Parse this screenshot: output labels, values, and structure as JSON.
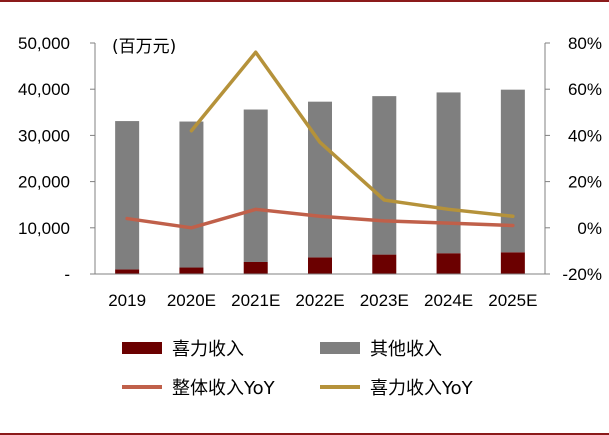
{
  "chart_data": {
    "type": "bar",
    "stacked": true,
    "unit_label": "(百万元)",
    "categories": [
      "2019",
      "2020E",
      "2021E",
      "2022E",
      "2023E",
      "2024E",
      "2025E"
    ],
    "series": [
      {
        "name": "喜力收入",
        "kind": "bar",
        "axis": "left",
        "color": "#6b0000",
        "values": [
          1000,
          1400,
          2600,
          3600,
          4200,
          4500,
          4700
        ]
      },
      {
        "name": "其他收入",
        "kind": "bar",
        "axis": "left",
        "color": "#7f7f7f",
        "values": [
          32100,
          31600,
          33000,
          33700,
          34300,
          34800,
          35200
        ]
      },
      {
        "name": "整体收入YoY",
        "kind": "line",
        "axis": "right",
        "color": "#c0604a",
        "values": [
          4,
          0,
          8,
          5,
          3,
          2,
          1
        ]
      },
      {
        "name": "喜力收入YoY",
        "kind": "line",
        "axis": "right",
        "color": "#b5923a",
        "values": [
          null,
          42,
          76,
          37,
          12,
          8,
          5
        ]
      }
    ],
    "left_axis": {
      "min": 0,
      "max": 50000,
      "step": 10000,
      "tick_labels": [
        "-",
        "10,000",
        "20,000",
        "30,000",
        "40,000",
        "50,000"
      ]
    },
    "right_axis": {
      "min": -20,
      "max": 80,
      "step": 20,
      "tick_labels": [
        "-20%",
        "0%",
        "20%",
        "40%",
        "60%",
        "80%"
      ]
    },
    "grid": false,
    "legend_position": "bottom"
  }
}
